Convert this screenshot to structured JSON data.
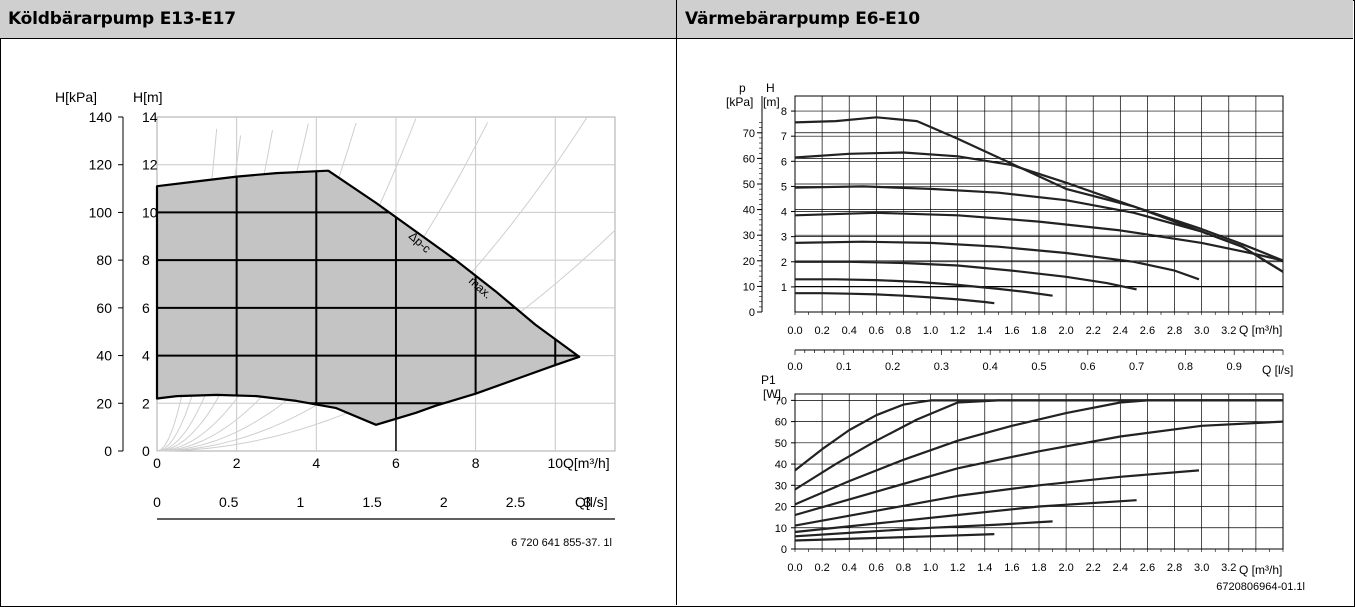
{
  "chart_data": [
    {
      "type": "area",
      "title": "Köldbärarpump E13-E17",
      "y1label": "H[kPa]",
      "y2label": "H[m]",
      "xlabel": "Q[m³/h]",
      "x2label": "Q[l/s]",
      "xlim": [
        0,
        11.5
      ],
      "ylim_m": [
        0,
        14
      ],
      "x_ticks": [
        "0",
        "2",
        "4",
        "6",
        "8",
        "10"
      ],
      "x2_ticks": [
        "0",
        "0.5",
        "1",
        "1.5",
        "2",
        "2.5",
        "3"
      ],
      "y_kpa_ticks": [
        "0",
        "20",
        "40",
        "60",
        "80",
        "100",
        "120",
        "140"
      ],
      "y_m_ticks": [
        "0",
        "2",
        "4",
        "6",
        "8",
        "10",
        "12",
        "14"
      ],
      "curve_labels": [
        "Δp-c",
        "max."
      ],
      "region_boundary": {
        "x": [
          0,
          0,
          1,
          2,
          3,
          4.3,
          5.5,
          6.5,
          7.5,
          8.5,
          9.5,
          10.6,
          10,
          9,
          8,
          7,
          6.5,
          5.5,
          4.5,
          3.5,
          2.5,
          1.5,
          0.5,
          0
        ],
        "y": [
          2.2,
          11.1,
          11.3,
          11.5,
          11.65,
          11.75,
          10.4,
          9.2,
          8.0,
          6.7,
          5.3,
          3.95,
          3.6,
          3.0,
          2.4,
          1.9,
          1.6,
          1.1,
          1.8,
          2.1,
          2.3,
          2.35,
          2.3,
          2.2
        ]
      },
      "note": "6 720 641 855-37. 1l"
    },
    {
      "type": "line",
      "title": "Värmebärarpump E6-E10",
      "y1label": "p",
      "y1unit": "[kPa]",
      "y2label": "H",
      "y2unit": "[m]",
      "xlabel": "Q [m³/h]",
      "x2label": "Q [l/s]",
      "xlim": [
        0,
        3.6
      ],
      "ylim_m": [
        0,
        8
      ],
      "x_ticks": [
        "0.0",
        "0.2",
        "0.4",
        "0.6",
        "0.8",
        "1.0",
        "1.2",
        "1.4",
        "1.6",
        "1.8",
        "2.0",
        "2.2",
        "2.4",
        "2.6",
        "2.8",
        "3.0",
        "3.2"
      ],
      "x2_ticks": [
        "0.0",
        "0.1",
        "0.2",
        "0.3",
        "0.4",
        "0.5",
        "0.6",
        "0.7",
        "0.8",
        "0.9",
        "1.0"
      ],
      "y_kpa_ticks": [
        "0",
        "10",
        "20",
        "30",
        "40",
        "50",
        "60",
        "70"
      ],
      "y_m_ticks": [
        "1",
        "2",
        "3",
        "4",
        "5",
        "6",
        "7",
        "8"
      ],
      "series": [
        {
          "x": [
            0,
            0.2,
            0.4,
            0.6,
            0.8,
            1.0,
            1.2,
            1.4,
            1.47
          ],
          "y": [
            0.75,
            0.75,
            0.73,
            0.7,
            0.65,
            0.58,
            0.5,
            0.4,
            0.35
          ]
        },
        {
          "x": [
            0,
            0.3,
            0.6,
            0.9,
            1.2,
            1.5,
            1.7,
            1.9
          ],
          "y": [
            1.3,
            1.3,
            1.27,
            1.2,
            1.08,
            0.92,
            0.8,
            0.65
          ]
        },
        {
          "x": [
            0,
            0.4,
            0.8,
            1.2,
            1.6,
            2.0,
            2.3,
            2.52
          ],
          "y": [
            2.0,
            2.0,
            1.95,
            1.85,
            1.65,
            1.4,
            1.15,
            0.9
          ]
        },
        {
          "x": [
            0,
            0.5,
            1.0,
            1.5,
            2.0,
            2.5,
            2.8,
            2.98
          ],
          "y": [
            2.75,
            2.8,
            2.75,
            2.6,
            2.35,
            2.0,
            1.65,
            1.3
          ]
        },
        {
          "x": [
            0,
            0.6,
            1.2,
            1.8,
            2.4,
            3.0,
            3.4,
            3.6
          ],
          "y": [
            3.85,
            3.95,
            3.85,
            3.6,
            3.25,
            2.75,
            2.3,
            2.05
          ]
        },
        {
          "x": [
            0,
            0.5,
            1.0,
            1.5,
            2.0,
            2.5,
            3.0,
            3.3,
            3.6
          ],
          "y": [
            4.95,
            5.0,
            4.9,
            4.75,
            4.45,
            3.95,
            3.2,
            2.6,
            1.6
          ]
        },
        {
          "x": [
            0,
            0.4,
            0.8,
            1.2,
            1.6,
            2.0,
            2.5,
            3.0,
            3.3,
            3.6
          ],
          "y": [
            6.15,
            6.3,
            6.35,
            6.2,
            5.85,
            5.15,
            4.2,
            3.2,
            2.6,
            1.6
          ]
        },
        {
          "x": [
            0,
            0.3,
            0.6,
            0.9,
            1.2,
            1.6,
            2.0,
            2.5,
            3.0,
            3.3,
            3.6
          ],
          "y": [
            7.55,
            7.6,
            7.75,
            7.6,
            6.9,
            5.9,
            4.9,
            4.2,
            3.3,
            2.7,
            2.05
          ]
        }
      ]
    },
    {
      "type": "line",
      "y1label": "P1",
      "y1unit": "[W]",
      "xlabel": "Q [m³/h]",
      "xlim": [
        0,
        3.6
      ],
      "ylim": [
        0,
        73
      ],
      "x_ticks": [
        "0.0",
        "0.2",
        "0.4",
        "0.6",
        "0.8",
        "1.0",
        "1.2",
        "1.4",
        "1.6",
        "1.8",
        "2.0",
        "2.2",
        "2.4",
        "2.6",
        "2.8",
        "3.0",
        "3.2"
      ],
      "y_ticks": [
        "0",
        "10",
        "20",
        "30",
        "40",
        "50",
        "60",
        "70"
      ],
      "series": [
        {
          "x": [
            0,
            0.5,
            1.0,
            1.47
          ],
          "y": [
            4,
            5,
            6,
            7
          ]
        },
        {
          "x": [
            0,
            0.5,
            1.0,
            1.5,
            1.9
          ],
          "y": [
            6,
            8,
            10,
            11.5,
            13
          ]
        },
        {
          "x": [
            0,
            0.6,
            1.2,
            1.8,
            2.52
          ],
          "y": [
            8,
            12,
            16,
            20,
            23
          ]
        },
        {
          "x": [
            0,
            0.6,
            1.2,
            1.8,
            2.4,
            2.98
          ],
          "y": [
            11,
            18,
            25,
            30,
            34,
            37
          ]
        },
        {
          "x": [
            0,
            0.6,
            1.2,
            1.8,
            2.4,
            3.0,
            3.6
          ],
          "y": [
            16,
            27,
            38,
            46,
            53,
            58,
            60
          ]
        },
        {
          "x": [
            0,
            0.4,
            0.8,
            1.2,
            1.6,
            2.0,
            2.4,
            2.6,
            3.0,
            3.6
          ],
          "y": [
            21,
            32,
            42,
            51,
            58,
            64,
            69,
            70,
            70,
            70
          ]
        },
        {
          "x": [
            0,
            0.3,
            0.6,
            0.9,
            1.2,
            1.5,
            1.8,
            3.6
          ],
          "y": [
            28,
            40,
            51,
            61,
            69,
            70,
            70,
            70
          ]
        },
        {
          "x": [
            0,
            0.2,
            0.4,
            0.6,
            0.8,
            1.0,
            1.2,
            3.6
          ],
          "y": [
            37,
            47,
            56,
            63,
            68,
            70,
            70,
            70
          ]
        }
      ],
      "note": "6720806964-01.1l"
    }
  ]
}
